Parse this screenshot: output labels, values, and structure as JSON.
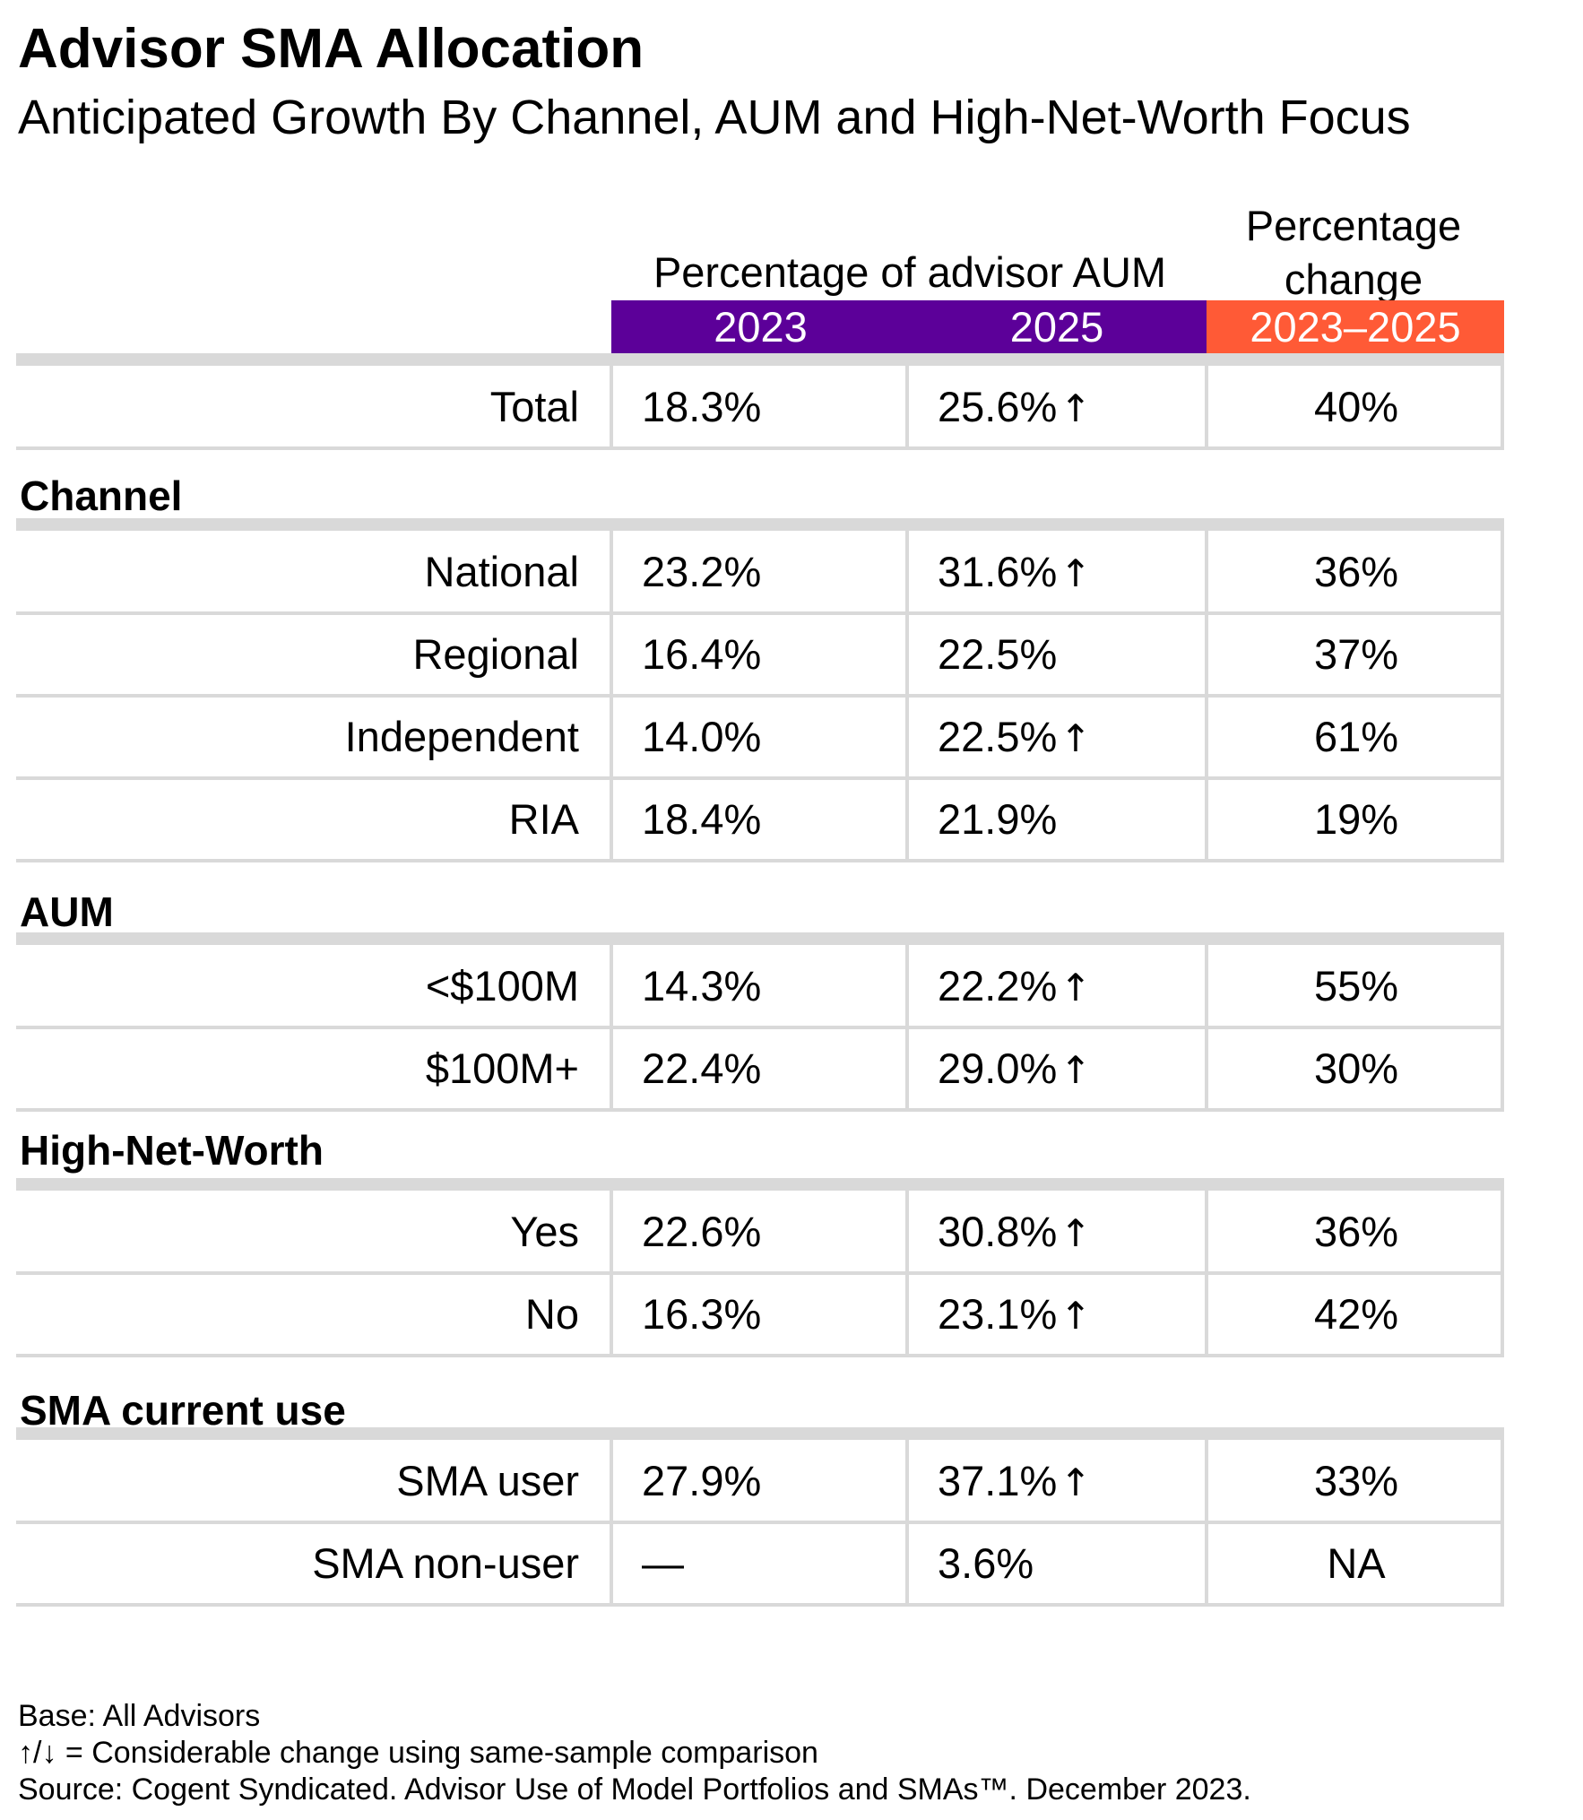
{
  "chart_data": {
    "type": "table",
    "title": "Advisor SMA Allocation",
    "subtitle": "Anticipated Growth By Channel, AUM and High-Net-Worth Focus",
    "column_group_label": "Percentage of advisor AUM",
    "change_label": "Percentage change",
    "columns": [
      "2023",
      "2025",
      "2023–2025"
    ],
    "colors": {
      "aum_header": "#5c0099",
      "change_header": "#ff5a36",
      "rule": "#d9d9d9"
    },
    "arrow_symbol": "↑",
    "total": {
      "label": "Total",
      "v2023": "18.3%",
      "v2025": "25.6%",
      "up": true,
      "change": "40%"
    },
    "sections": [
      {
        "label": "Channel",
        "rows": [
          {
            "label": "National",
            "v2023": "23.2%",
            "v2025": "31.6%",
            "up": true,
            "change": "36%"
          },
          {
            "label": "Regional",
            "v2023": "16.4%",
            "v2025": "22.5%",
            "up": false,
            "change": "37%"
          },
          {
            "label": "Independent",
            "v2023": "14.0%",
            "v2025": "22.5%",
            "up": true,
            "change": "61%"
          },
          {
            "label": "RIA",
            "v2023": "18.4%",
            "v2025": "21.9%",
            "up": false,
            "change": "19%"
          }
        ]
      },
      {
        "label": "AUM",
        "rows": [
          {
            "label": "<$100M",
            "v2023": "14.3%",
            "v2025": "22.2%",
            "up": true,
            "change": "55%"
          },
          {
            "label": "$100M+",
            "v2023": "22.4%",
            "v2025": "29.0%",
            "up": true,
            "change": "30%"
          }
        ]
      },
      {
        "label": "High-Net-Worth",
        "rows": [
          {
            "label": "Yes",
            "v2023": "22.6%",
            "v2025": "30.8%",
            "up": true,
            "change": "36%"
          },
          {
            "label": "No",
            "v2023": "16.3%",
            "v2025": "23.1%",
            "up": true,
            "change": "42%"
          }
        ]
      },
      {
        "label": "SMA current use",
        "rows": [
          {
            "label": "SMA user",
            "v2023": "27.9%",
            "v2025": "37.1%",
            "up": true,
            "change": "33%"
          },
          {
            "label": "SMA non-user",
            "v2023": "—",
            "v2025": "3.6%",
            "up": false,
            "change": "NA"
          }
        ]
      }
    ]
  },
  "footnotes": {
    "base": "Base: All Advisors",
    "arrows": "↑/↓ = Considerable change using same-sample comparison",
    "source": "Source: Cogent Syndicated. Advisor Use of Model Portfolios and SMAs™. December 2023."
  }
}
